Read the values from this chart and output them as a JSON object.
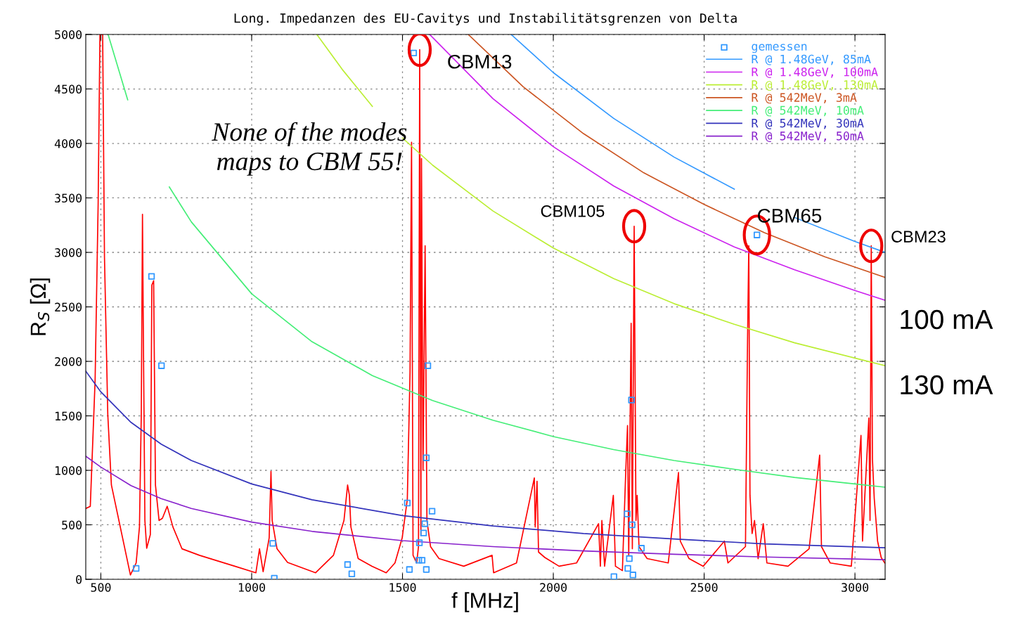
{
  "chart_data": {
    "type": "line",
    "title": "Long. Impedanzen des EU-Cavitys und Instabilitätsgrenzen von Delta",
    "xlabel": "f [MHz]",
    "ylabel": "R$_{S}$ [Ω]",
    "xlim": [
      450,
      3100
    ],
    "ylim": [
      0,
      5000
    ],
    "xticks": [
      500,
      1000,
      1500,
      2000,
      2500,
      3000
    ],
    "yticks": [
      0,
      500,
      1000,
      1500,
      2000,
      2500,
      3000,
      3500,
      4000,
      4500,
      5000
    ],
    "grid": true,
    "legend": "top right",
    "series": [
      {
        "color": "#ff0000",
        "x": [
          450,
          465,
          481,
          491,
          497,
          506,
          512,
          523,
          535,
          598,
          617,
          628,
          634,
          638,
          641,
          646,
          652,
          664,
          669,
          675,
          681,
          693,
          704,
          720,
          739,
          769,
          827,
          944,
          1014,
          1026,
          1038,
          1058,
          1064,
          1068,
          1084,
          1119,
          1212,
          1271,
          1306,
          1318,
          1324,
          1329,
          1353,
          1399,
          1446,
          1475,
          1499,
          1516,
          1525,
          1530,
          1535,
          1547,
          1553,
          1557,
          1561,
          1563,
          1568,
          1575,
          1581,
          1593,
          1621,
          1703,
          1797,
          1802,
          1878,
          1937,
          1940,
          1946,
          1951,
          1972,
          2019,
          2077,
          2150,
          2156,
          2161,
          2170,
          2199,
          2206,
          2229,
          2240,
          2246,
          2250,
          2258,
          2262,
          2268,
          2274,
          2278,
          2284,
          2311,
          2381,
          2415,
          2421,
          2450,
          2497,
          2567,
          2579,
          2637,
          2644,
          2648,
          2652,
          2659,
          2667,
          2679,
          2696,
          2708,
          2778,
          2848,
          2883,
          2889,
          2918,
          2988,
          3020,
          3025,
          3046,
          3050,
          3054,
          3058,
          3064,
          3075,
          3087,
          3099
        ],
        "values": [
          650,
          670,
          1830,
          3440,
          5000,
          5000,
          2960,
          1510,
          865,
          40,
          150,
          480,
          1510,
          3350,
          2220,
          540,
          285,
          410,
          2700,
          2740,
          865,
          540,
          560,
          670,
          480,
          280,
          220,
          120,
          60,
          280,
          70,
          380,
          990,
          540,
          280,
          155,
          60,
          220,
          540,
          865,
          770,
          480,
          190,
          120,
          60,
          150,
          380,
          735,
          1900,
          4010,
          220,
          150,
          300,
          4860,
          400,
          3860,
          1000,
          3060,
          540,
          300,
          190,
          120,
          220,
          60,
          150,
          930,
          480,
          900,
          250,
          200,
          120,
          150,
          510,
          120,
          540,
          120,
          770,
          120,
          80,
          980,
          1410,
          220,
          2350,
          280,
          3240,
          540,
          770,
          300,
          190,
          150,
          980,
          350,
          190,
          120,
          350,
          150,
          300,
          2220,
          3060,
          770,
          420,
          540,
          190,
          510,
          150,
          120,
          280,
          1140,
          300,
          150,
          120,
          1320,
          350,
          1480,
          540,
          3060,
          1100,
          740,
          350,
          200,
          150
        ]
      },
      {
        "type": "scatter",
        "name": "gemessen",
        "color": "#3399ff",
        "marker": "square",
        "x": [
          617,
          668,
          701,
          1070,
          1075,
          1318,
          1332,
          1516,
          1523,
          1537,
          1554,
          1556,
          1565,
          1570,
          1574,
          1579,
          1579,
          1584,
          1598,
          2201,
          2245,
          2247,
          2252,
          2259,
          2261,
          2264,
          2292,
          2675
        ],
        "values": [
          100,
          2780,
          1960,
          330,
          10,
          135,
          50,
          700,
          90,
          4830,
          175,
          335,
          175,
          425,
          510,
          90,
          1115,
          1960,
          625,
          25,
          600,
          100,
          190,
          1645,
          500,
          40,
          285,
          3160
        ]
      },
      {
        "name": "R @ 1.48GeV, 85mA",
        "color": "#3399ff",
        "x": [
          1860,
          2000,
          2200,
          2400,
          2600,
          2680,
          2800,
          3000,
          3100
        ],
        "values": [
          5000,
          4650,
          4230,
          3875,
          3580,
          null,
          3320,
          3100,
          3000
        ]
      },
      {
        "name": "R @ 1.48GeV, 100mA",
        "color": "#cc22ee",
        "x": [
          1590,
          1800,
          2000,
          2200,
          2400,
          2600,
          2800,
          3000,
          3100
        ],
        "values": [
          5000,
          4410,
          3970,
          3610,
          3310,
          3050,
          2840,
          2650,
          2560
        ]
      },
      {
        "name": "R @ 1.48GeV, 130mA",
        "color": "#bbee33",
        "x": [
          1216,
          1300,
          1400,
          1450,
          1500,
          1600,
          1800,
          2000,
          2200,
          2400,
          2600,
          2800,
          3000,
          3100
        ],
        "values": [
          5000,
          4680,
          4340,
          null,
          4050,
          3800,
          3380,
          3040,
          2760,
          2530,
          2340,
          2170,
          2030,
          1960
        ]
      },
      {
        "name": "R @ 542MeV, 3mA",
        "color": "#cc5522",
        "x": [
          1718,
          1900,
          2100,
          2300,
          2500,
          2700,
          2900,
          3100
        ],
        "values": [
          5000,
          4520,
          4090,
          3730,
          3440,
          3180,
          2960,
          2770
        ]
      },
      {
        "name": "R @ 542MeV, 10mA",
        "color": "#44ee77",
        "x": [
          524,
          589,
          650,
          727,
          800,
          1000,
          1200,
          1400,
          1600,
          1800,
          2000,
          2200,
          2400,
          2600,
          2800,
          3000,
          3100
        ],
        "values": [
          5000,
          4400,
          null,
          3600,
          3280,
          2620,
          2180,
          1870,
          1640,
          1460,
          1310,
          1190,
          1090,
          1010,
          935,
          875,
          845
        ]
      },
      {
        "name": "R @ 542MeV, 30mA",
        "color": "#3333bb",
        "x": [
          450,
          500,
          600,
          700,
          800,
          1000,
          1200,
          1500,
          1800,
          2100,
          2400,
          2700,
          3100
        ],
        "values": [
          1910,
          1720,
          1440,
          1240,
          1090,
          875,
          730,
          585,
          490,
          420,
          370,
          325,
          290
        ]
      },
      {
        "name": "R @ 542MeV, 50mA",
        "color": "#8822cc",
        "x": [
          450,
          500,
          600,
          700,
          800,
          1000,
          1200,
          1500,
          1800,
          2100,
          2400,
          2700,
          3100
        ],
        "values": [
          1130,
          1030,
          860,
          740,
          650,
          525,
          440,
          355,
          300,
          260,
          230,
          205,
          180
        ]
      }
    ],
    "annotations": [
      {
        "text": "CBM13",
        "x": 1557,
        "y": 4860
      },
      {
        "text": "CBM105",
        "x": 2268,
        "y": 3240
      },
      {
        "text": "CBM65",
        "x": 2675,
        "y": 3160
      },
      {
        "text": "CBM23",
        "x": 3054,
        "y": 3060
      },
      {
        "text": "100 mA",
        "x": 3100,
        "y": 2560
      },
      {
        "text": "130 mA",
        "x": 3100,
        "y": 1960
      },
      "None of the modes\nmaps to CBM 55!"
    ]
  }
}
